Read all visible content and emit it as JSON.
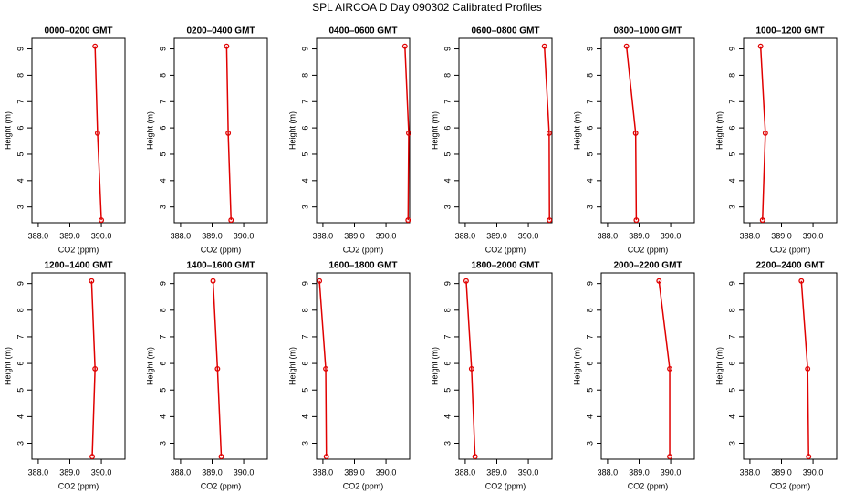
{
  "title": "SPL AIRCOA D  Day 090302  Calibrated Profiles",
  "chart_data": [
    {
      "type": "line",
      "title": "0000–0200 GMT",
      "xlabel": "CO2 (ppm)",
      "ylabel": "Height (m)",
      "color": "#e00000",
      "heights": [
        9.1,
        5.8,
        2.5
      ],
      "values": [
        389.8,
        389.88,
        390.0
      ],
      "xlim": [
        387.8,
        390.75
      ],
      "ylim": [
        2.4,
        9.4
      ],
      "xticks": [
        {
          "value": 388,
          "label": "388.0"
        },
        {
          "value": 389,
          "label": "389.0"
        },
        {
          "value": 390,
          "label": "390.0"
        }
      ],
      "yticks": [
        3,
        4,
        5,
        6,
        7,
        8,
        9
      ]
    },
    {
      "type": "line",
      "title": "0200–0400 GMT",
      "xlabel": "CO2 (ppm)",
      "ylabel": "Height (m)",
      "color": "#e00000",
      "heights": [
        9.1,
        5.8,
        2.5
      ],
      "values": [
        389.46,
        389.51,
        389.6
      ],
      "xlim": [
        387.8,
        390.75
      ],
      "ylim": [
        2.4,
        9.4
      ],
      "xticks": [
        {
          "value": 388,
          "label": "388.0"
        },
        {
          "value": 389,
          "label": "389.0"
        },
        {
          "value": 390,
          "label": "390.0"
        }
      ],
      "yticks": [
        3,
        4,
        5,
        6,
        7,
        8,
        9
      ]
    },
    {
      "type": "line",
      "title": "0400–0600 GMT",
      "xlabel": "CO2 (ppm)",
      "ylabel": "Height (m)",
      "color": "#e00000",
      "heights": [
        9.1,
        5.8,
        2.5
      ],
      "values": [
        390.6,
        390.72,
        390.7
      ],
      "xlim": [
        387.8,
        390.75
      ],
      "ylim": [
        2.4,
        9.4
      ],
      "xticks": [
        {
          "value": 388,
          "label": "388.0"
        },
        {
          "value": 389,
          "label": "389.0"
        },
        {
          "value": 390,
          "label": "390.0"
        }
      ],
      "yticks": [
        3,
        4,
        5,
        6,
        7,
        8,
        9
      ]
    },
    {
      "type": "line",
      "title": "0600–0800 GMT",
      "xlabel": "CO2 (ppm)",
      "ylabel": "Height (m)",
      "color": "#e00000",
      "heights": [
        9.1,
        5.8,
        2.5
      ],
      "values": [
        390.51,
        390.66,
        390.67
      ],
      "xlim": [
        387.8,
        390.75
      ],
      "ylim": [
        2.4,
        9.4
      ],
      "xticks": [
        {
          "value": 388,
          "label": "388.0"
        },
        {
          "value": 389,
          "label": "389.0"
        },
        {
          "value": 390,
          "label": "390.0"
        }
      ],
      "yticks": [
        3,
        4,
        5,
        6,
        7,
        8,
        9
      ]
    },
    {
      "type": "line",
      "title": "0800–1000 GMT",
      "xlabel": "CO2 (ppm)",
      "ylabel": "Height (m)",
      "color": "#e00000",
      "heights": [
        9.1,
        5.8,
        2.5
      ],
      "values": [
        388.6,
        388.89,
        388.91
      ],
      "xlim": [
        387.8,
        390.75
      ],
      "ylim": [
        2.4,
        9.4
      ],
      "xticks": [
        {
          "value": 388,
          "label": "388.0"
        },
        {
          "value": 389,
          "label": "389.0"
        },
        {
          "value": 390,
          "label": "390.0"
        }
      ],
      "yticks": [
        3,
        4,
        5,
        6,
        7,
        8,
        9
      ]
    },
    {
      "type": "line",
      "title": "1000–1200 GMT",
      "xlabel": "CO2 (ppm)",
      "ylabel": "Height (m)",
      "color": "#e00000",
      "heights": [
        9.1,
        5.8,
        2.5
      ],
      "values": [
        388.34,
        388.49,
        388.4
      ],
      "xlim": [
        387.8,
        390.75
      ],
      "ylim": [
        2.4,
        9.4
      ],
      "xticks": [
        {
          "value": 388,
          "label": "388.0"
        },
        {
          "value": 389,
          "label": "389.0"
        },
        {
          "value": 390,
          "label": "390.0"
        }
      ],
      "yticks": [
        3,
        4,
        5,
        6,
        7,
        8,
        9
      ]
    },
    {
      "type": "line",
      "title": "1200–1400 GMT",
      "xlabel": "CO2 (ppm)",
      "ylabel": "Height (m)",
      "color": "#e00000",
      "heights": [
        9.1,
        5.8,
        2.5
      ],
      "values": [
        389.69,
        389.8,
        389.71
      ],
      "xlim": [
        387.8,
        390.75
      ],
      "ylim": [
        2.4,
        9.4
      ],
      "xticks": [
        {
          "value": 388,
          "label": "388.0"
        },
        {
          "value": 389,
          "label": "389.0"
        },
        {
          "value": 390,
          "label": "390.0"
        }
      ],
      "yticks": [
        3,
        4,
        5,
        6,
        7,
        8,
        9
      ]
    },
    {
      "type": "line",
      "title": "1400–1600 GMT",
      "xlabel": "CO2 (ppm)",
      "ylabel": "Height (m)",
      "color": "#e00000",
      "heights": [
        9.1,
        5.8,
        2.5
      ],
      "values": [
        389.03,
        389.17,
        389.29
      ],
      "xlim": [
        387.8,
        390.75
      ],
      "ylim": [
        2.4,
        9.4
      ],
      "xticks": [
        {
          "value": 388,
          "label": "388.0"
        },
        {
          "value": 389,
          "label": "389.0"
        },
        {
          "value": 390,
          "label": "390.0"
        }
      ],
      "yticks": [
        3,
        4,
        5,
        6,
        7,
        8,
        9
      ]
    },
    {
      "type": "line",
      "title": "1600–1800 GMT",
      "xlabel": "CO2 (ppm)",
      "ylabel": "Height (m)",
      "color": "#e00000",
      "heights": [
        9.1,
        5.8,
        2.5
      ],
      "values": [
        387.89,
        388.09,
        388.11
      ],
      "xlim": [
        387.8,
        390.75
      ],
      "ylim": [
        2.4,
        9.4
      ],
      "xticks": [
        {
          "value": 388,
          "label": "388.0"
        },
        {
          "value": 389,
          "label": "389.0"
        },
        {
          "value": 390,
          "label": "390.0"
        }
      ],
      "yticks": [
        3,
        4,
        5,
        6,
        7,
        8,
        9
      ]
    },
    {
      "type": "line",
      "title": "1800–2000 GMT",
      "xlabel": "CO2 (ppm)",
      "ylabel": "Height (m)",
      "color": "#e00000",
      "heights": [
        9.1,
        5.8,
        2.5
      ],
      "values": [
        388.03,
        388.2,
        388.31
      ],
      "xlim": [
        387.8,
        390.75
      ],
      "ylim": [
        2.4,
        9.4
      ],
      "xticks": [
        {
          "value": 388,
          "label": "388.0"
        },
        {
          "value": 389,
          "label": "389.0"
        },
        {
          "value": 390,
          "label": "390.0"
        }
      ],
      "yticks": [
        3,
        4,
        5,
        6,
        7,
        8,
        9
      ]
    },
    {
      "type": "line",
      "title": "2000–2200 GMT",
      "xlabel": "CO2 (ppm)",
      "ylabel": "Height (m)",
      "color": "#e00000",
      "heights": [
        9.1,
        5.8,
        2.5
      ],
      "values": [
        389.63,
        389.97,
        389.97
      ],
      "xlim": [
        387.8,
        390.75
      ],
      "ylim": [
        2.4,
        9.4
      ],
      "xticks": [
        {
          "value": 388,
          "label": "388.0"
        },
        {
          "value": 389,
          "label": "389.0"
        },
        {
          "value": 390,
          "label": "390.0"
        }
      ],
      "yticks": [
        3,
        4,
        5,
        6,
        7,
        8,
        9
      ]
    },
    {
      "type": "line",
      "title": "2200–2400 GMT",
      "xlabel": "CO2 (ppm)",
      "ylabel": "Height (m)",
      "color": "#e00000",
      "heights": [
        9.1,
        5.8,
        2.5
      ],
      "values": [
        389.63,
        389.83,
        389.86
      ],
      "xlim": [
        387.8,
        390.75
      ],
      "ylim": [
        2.4,
        9.4
      ],
      "xticks": [
        {
          "value": 388,
          "label": "388.0"
        },
        {
          "value": 389,
          "label": "389.0"
        },
        {
          "value": 390,
          "label": "390.0"
        }
      ],
      "yticks": [
        3,
        4,
        5,
        6,
        7,
        8,
        9
      ]
    }
  ]
}
